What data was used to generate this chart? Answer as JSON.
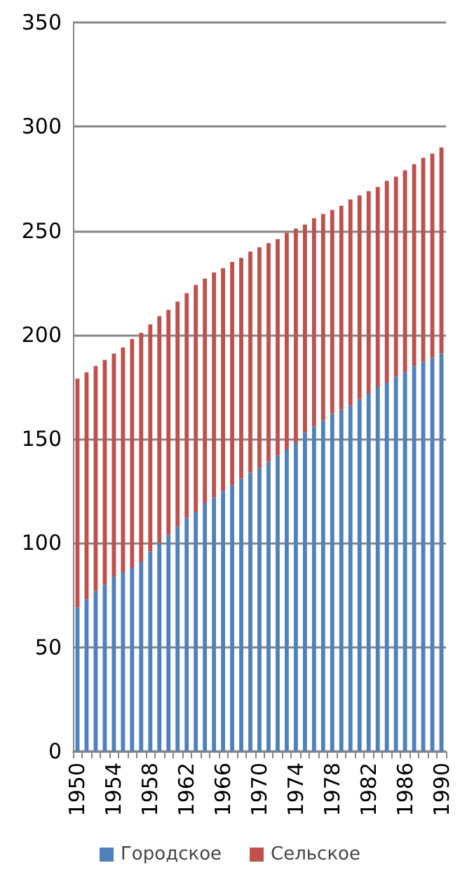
{
  "chart_data": {
    "type": "bar",
    "stacked": true,
    "categories": [
      "1950",
      null,
      null,
      null,
      "1954",
      null,
      null,
      null,
      "1958",
      null,
      null,
      null,
      "1962",
      null,
      null,
      null,
      "1966",
      null,
      null,
      null,
      "1970",
      null,
      null,
      null,
      "1974",
      null,
      null,
      null,
      "1978",
      null,
      null,
      null,
      "1982",
      null,
      null,
      null,
      "1986",
      null,
      null,
      null,
      "1990"
    ],
    "series": [
      {
        "name": "Городское",
        "color": "#4f81bd",
        "values": [
          69,
          73,
          77,
          80,
          84,
          86,
          88,
          91,
          96,
          100,
          104,
          108,
          112,
          115,
          119,
          122,
          125,
          128,
          131,
          134,
          136,
          139,
          142,
          145,
          148,
          153,
          156,
          159,
          162,
          164,
          166,
          169,
          172,
          175,
          177,
          180,
          182,
          185,
          187,
          189,
          191
        ]
      },
      {
        "name": "Сельское",
        "color": "#c0504d",
        "values": [
          110,
          109,
          108,
          108,
          107,
          108,
          110,
          110,
          109,
          109,
          108,
          108,
          108,
          109,
          108,
          108,
          107,
          107,
          106,
          106,
          106,
          105,
          104,
          104,
          103,
          100,
          100,
          99,
          98,
          98,
          99,
          98,
          97,
          96,
          97,
          96,
          97,
          97,
          98,
          98,
          99
        ]
      }
    ],
    "ylim": [
      0,
      350
    ],
    "yticks": [
      0,
      50,
      100,
      150,
      200,
      250,
      300,
      350
    ],
    "grid": "y",
    "legend": "bottom"
  }
}
